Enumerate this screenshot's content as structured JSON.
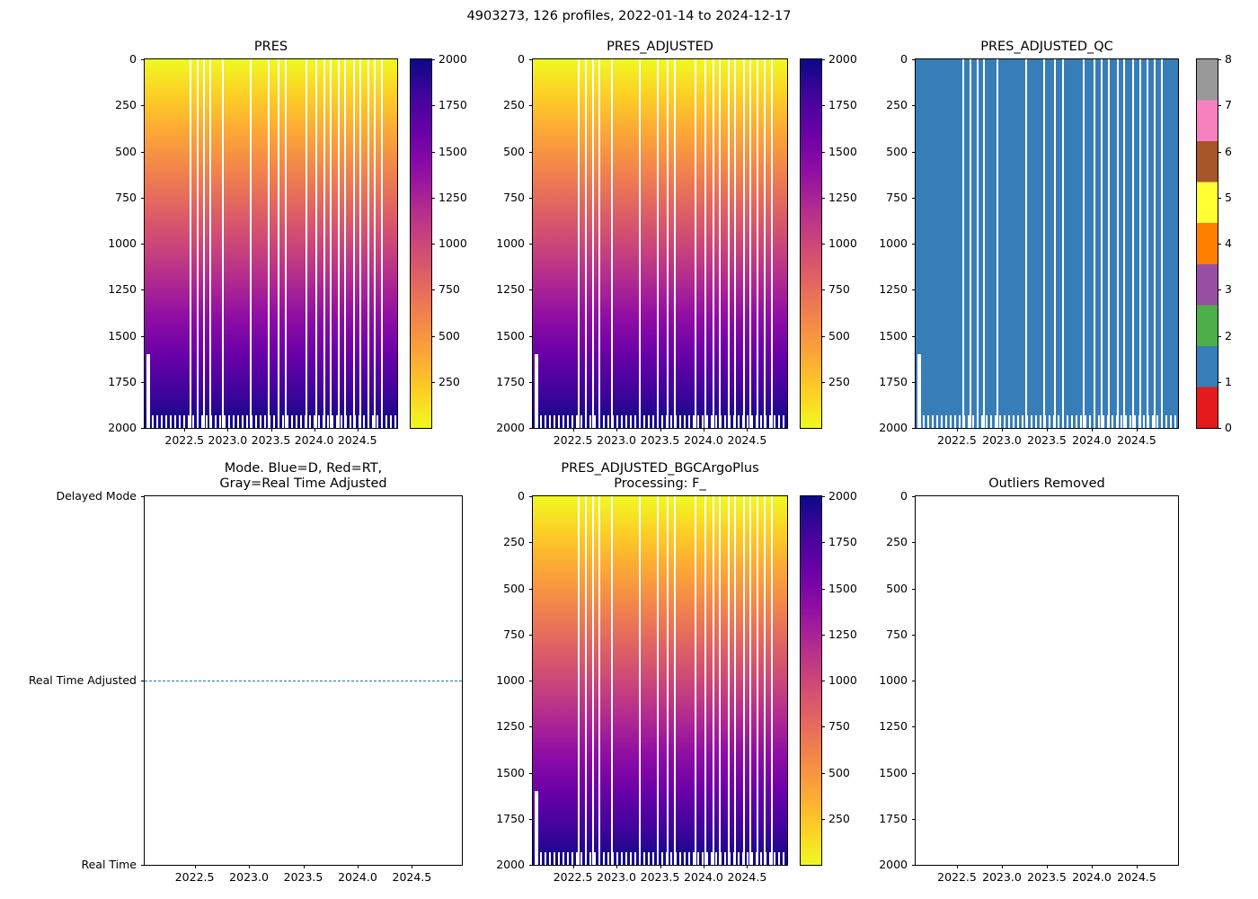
{
  "figure": {
    "title": "4903273, 126 profiles, 2022-01-14 to 2024-12-17",
    "platform_id": "4903273",
    "n_profiles": 126,
    "date_start": "2022-01-14",
    "date_end": "2024-12-17",
    "background": "#ffffff"
  },
  "colormaps": {
    "plasma_r": [
      "#f0f921",
      "#fcce25",
      "#fca636",
      "#f2844b",
      "#e16462",
      "#cc4778",
      "#b12a90",
      "#8f0da4",
      "#6a00a8",
      "#41049d",
      "#0d0887"
    ],
    "qc_set1": [
      "#e41a1c",
      "#377eb8",
      "#4daf4a",
      "#984ea3",
      "#ff7f00",
      "#ffff33",
      "#a65628",
      "#f781bf",
      "#999999"
    ]
  },
  "heatmap_gaps_x_fractions": [
    0.18,
    0.21,
    0.235,
    0.26,
    0.31,
    0.42,
    0.49,
    0.53,
    0.56,
    0.64,
    0.68,
    0.71,
    0.735,
    0.77,
    0.795,
    0.83,
    0.855,
    0.885,
    0.91,
    0.94
  ],
  "chart_data": [
    {
      "id": "pres",
      "type": "heatmap",
      "title": "PRES",
      "x_range": [
        2022.04,
        2024.96
      ],
      "x_tick_values": [
        2022.5,
        2023.0,
        2023.5,
        2024.0,
        2024.5
      ],
      "x_tick_labels": [
        "2022.5",
        "2023.0",
        "2023.5",
        "2024.0",
        "2024.5"
      ],
      "y_range": [
        0,
        2000
      ],
      "y_inverted": true,
      "y_tick_values": [
        0,
        250,
        500,
        750,
        1000,
        1250,
        1500,
        1750,
        2000
      ],
      "value_range": [
        0,
        2000
      ],
      "colormap": "plasma_r",
      "colorbar": {
        "type": "gradient",
        "range": [
          0,
          2000
        ],
        "tick_values": [
          250,
          500,
          750,
          1000,
          1250,
          1500,
          1750,
          2000
        ],
        "tick_labels": [
          "250",
          "500",
          "750",
          "1000",
          "1250",
          "1500",
          "1750",
          "2000"
        ]
      },
      "comb": {
        "start_frac": 0.965
      },
      "notch": {
        "x_frac": 0.008,
        "width_frac": 0.012,
        "top_frac": 0.8
      }
    },
    {
      "id": "pres_adjusted",
      "type": "heatmap",
      "title": "PRES_ADJUSTED",
      "x_range": [
        2022.04,
        2024.96
      ],
      "x_tick_values": [
        2022.5,
        2023.0,
        2023.5,
        2024.0,
        2024.5
      ],
      "x_tick_labels": [
        "2022.5",
        "2023.0",
        "2023.5",
        "2024.0",
        "2024.5"
      ],
      "y_range": [
        0,
        2000
      ],
      "y_inverted": true,
      "y_tick_values": [
        0,
        250,
        500,
        750,
        1000,
        1250,
        1500,
        1750,
        2000
      ],
      "value_range": [
        0,
        2000
      ],
      "colormap": "plasma_r",
      "colorbar": {
        "type": "gradient",
        "range": [
          0,
          2000
        ],
        "tick_values": [
          250,
          500,
          750,
          1000,
          1250,
          1500,
          1750,
          2000
        ],
        "tick_labels": [
          "250",
          "500",
          "750",
          "1000",
          "1250",
          "1500",
          "1750",
          "2000"
        ]
      },
      "comb": {
        "start_frac": 0.965
      },
      "notch": {
        "x_frac": 0.008,
        "width_frac": 0.012,
        "top_frac": 0.8
      }
    },
    {
      "id": "pres_adjusted_qc",
      "type": "heatmap-categorical",
      "title": "PRES_ADJUSTED_QC",
      "constant_value": 1,
      "fill_color": "#377eb8",
      "x_range": [
        2022.04,
        2024.96
      ],
      "x_tick_values": [
        2022.5,
        2023.0,
        2023.5,
        2024.0,
        2024.5
      ],
      "x_tick_labels": [
        "2022.5",
        "2023.0",
        "2023.5",
        "2024.0",
        "2024.5"
      ],
      "y_range": [
        0,
        2000
      ],
      "y_inverted": true,
      "y_tick_values": [
        0,
        250,
        500,
        750,
        1000,
        1250,
        1500,
        1750,
        2000
      ],
      "colorbar": {
        "type": "discrete",
        "palette": "qc_set1",
        "range": [
          0,
          8
        ],
        "tick_values": [
          0,
          1,
          2,
          3,
          4,
          5,
          6,
          7,
          8
        ],
        "tick_labels": [
          "0",
          "1",
          "2",
          "3",
          "4",
          "5",
          "6",
          "7",
          "8"
        ]
      },
      "comb": {
        "start_frac": 0.965
      },
      "notch": {
        "x_frac": 0.008,
        "width_frac": 0.012,
        "top_frac": 0.8
      }
    },
    {
      "id": "mode",
      "type": "line-categorical",
      "title": "Mode. Blue=D, Red=RT,\nGray=Real Time Adjusted",
      "x_range": [
        2022.04,
        2024.96
      ],
      "x_tick_values": [
        2022.5,
        2023.0,
        2023.5,
        2024.0,
        2024.5
      ],
      "x_tick_labels": [
        "2022.5",
        "2023.0",
        "2023.5",
        "2024.0",
        "2024.5"
      ],
      "y_categories_top_to_bottom": [
        "Delayed Mode",
        "Real Time Adjusted",
        "Real Time"
      ],
      "series": [
        {
          "name": "processing-mode",
          "constant_value": "Real Time Adjusted",
          "color": "#1f77b4",
          "line_style": "dashed",
          "y_frac_from_top": 0.5
        }
      ]
    },
    {
      "id": "pres_adjusted_bgc",
      "type": "heatmap",
      "title": "PRES_ADJUSTED_BGCArgoPlus\nProcessing: F_",
      "x_range": [
        2022.04,
        2024.96
      ],
      "x_tick_values": [
        2022.5,
        2023.0,
        2023.5,
        2024.0,
        2024.5
      ],
      "x_tick_labels": [
        "2022.5",
        "2023.0",
        "2023.5",
        "2024.0",
        "2024.5"
      ],
      "y_range": [
        0,
        2000
      ],
      "y_inverted": true,
      "y_tick_values": [
        0,
        250,
        500,
        750,
        1000,
        1250,
        1500,
        1750,
        2000
      ],
      "value_range": [
        0,
        2000
      ],
      "colormap": "plasma_r",
      "colorbar": {
        "type": "gradient",
        "range": [
          0,
          2000
        ],
        "tick_values": [
          250,
          500,
          750,
          1000,
          1250,
          1500,
          1750,
          2000
        ],
        "tick_labels": [
          "250",
          "500",
          "750",
          "1000",
          "1250",
          "1500",
          "1750",
          "2000"
        ]
      },
      "comb": {
        "start_frac": 0.965
      },
      "notch": {
        "x_frac": 0.008,
        "width_frac": 0.012,
        "top_frac": 0.8
      }
    },
    {
      "id": "outliers_removed",
      "type": "empty",
      "title": "Outliers Removed",
      "x_range": [
        2022.04,
        2024.96
      ],
      "x_tick_values": [
        2022.5,
        2023.0,
        2023.5,
        2024.0,
        2024.5
      ],
      "x_tick_labels": [
        "2022.5",
        "2023.0",
        "2023.5",
        "2024.0",
        "2024.5"
      ],
      "y_range": [
        0,
        2000
      ],
      "y_inverted": true,
      "y_tick_values": [
        0,
        250,
        500,
        750,
        1000,
        1250,
        1500,
        1750,
        2000
      ]
    }
  ]
}
